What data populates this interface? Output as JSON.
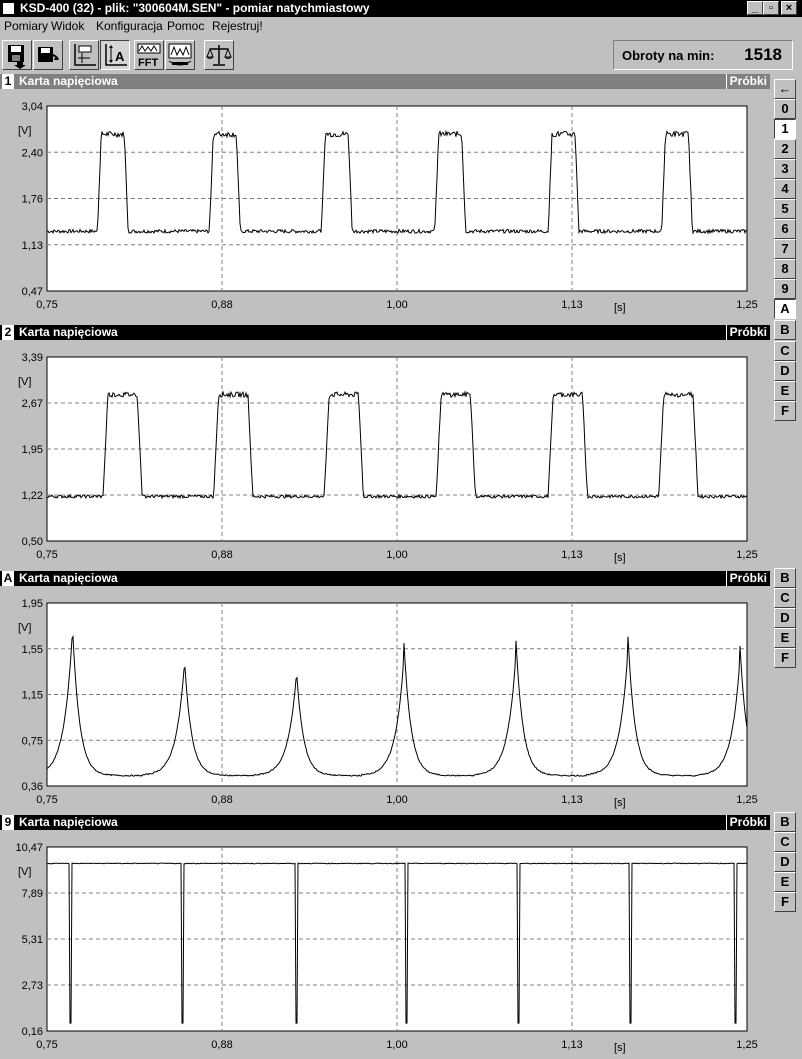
{
  "window": {
    "title": "KSD-400 (32) - plik: \"300604M.SEN\" - pomiar natychmiastowy",
    "controls": [
      "_",
      "▫",
      "×"
    ]
  },
  "menu": [
    "Pomiary",
    "Widok",
    "Konfiguracja",
    "Pomoc",
    "Rejestruj!"
  ],
  "toolbar": {
    "buttons": [
      "save-icon",
      "open-icon",
      "cursor-icon",
      "amplitude-icon",
      "fft-icon",
      "analyzer-icon",
      "scale-icon"
    ],
    "fft_label": "FFT"
  },
  "rpm": {
    "label": "Obroty na min:",
    "value": "1518"
  },
  "side_tabs_top": [
    "←",
    "0",
    "1",
    "2",
    "3",
    "4",
    "5",
    "6",
    "7",
    "8",
    "9",
    "A",
    "B",
    "C",
    "D",
    "E",
    "F"
  ],
  "side_tabs_small": [
    "B",
    "C",
    "D",
    "E",
    "F"
  ],
  "panels": [
    {
      "id": "1",
      "title": "Karta napięciowa",
      "samples": "Próbki",
      "y_ticks": [
        "3,04",
        "2,40",
        "1,76",
        "1,13",
        "0,47"
      ],
      "unit": "[V]",
      "x_ticks": [
        "0,75",
        "0,88",
        "1,00",
        "1,13",
        "1,25"
      ],
      "x_unit": "[s]"
    },
    {
      "id": "2",
      "title": "Karta napięciowa",
      "samples": "Próbki",
      "y_ticks": [
        "3,39",
        "2,67",
        "1,95",
        "1,22",
        "0,50"
      ],
      "unit": "[V]",
      "x_ticks": [
        "0,75",
        "0,88",
        "1,00",
        "1,13",
        "1,25"
      ],
      "x_unit": "[s]"
    },
    {
      "id": "A",
      "title": "Karta napięciowa",
      "samples": "Próbki",
      "y_ticks": [
        "1,95",
        "1,55",
        "1,15",
        "0,75",
        "0,36"
      ],
      "unit": "[V]",
      "x_ticks": [
        "0,75",
        "0,88",
        "1,00",
        "1,13",
        "1,25"
      ],
      "x_unit": "[s]"
    },
    {
      "id": "9",
      "title": "Karta napięciowa",
      "samples": "Próbki",
      "y_ticks": [
        "10,47",
        "7,89",
        "5,31",
        "2,73",
        "0,16"
      ],
      "unit": "[V]",
      "x_ticks": [
        "0,75",
        "0,88",
        "1,00",
        "1,13",
        "1,25"
      ],
      "x_unit": "[s]"
    }
  ],
  "chart_data": [
    {
      "type": "line",
      "panel": "1",
      "shape": "pulse",
      "ylim": [
        0.47,
        3.04
      ],
      "xlim": [
        0.75,
        1.25
      ],
      "baseline": 1.3,
      "peak": 2.65,
      "peaks_x": [
        0.797,
        0.877,
        0.957,
        1.038,
        1.119,
        1.2
      ],
      "pulse_width": 0.011,
      "color": "#000000"
    },
    {
      "type": "line",
      "panel": "2",
      "shape": "pulse",
      "ylim": [
        0.5,
        3.39
      ],
      "xlim": [
        0.75,
        1.25
      ],
      "baseline": 1.2,
      "peak": 2.8,
      "peaks_x": [
        0.804,
        0.883,
        0.962,
        1.042,
        1.122,
        1.201
      ],
      "pulse_width": 0.014,
      "color": "#000000"
    },
    {
      "type": "line",
      "panel": "A",
      "shape": "spike_decay",
      "ylim": [
        0.36,
        1.95
      ],
      "xlim": [
        0.75,
        1.25
      ],
      "baseline": 0.45,
      "peaks_x": [
        0.768,
        0.848,
        0.928,
        1.005,
        1.085,
        1.165,
        1.245
      ],
      "peaks_y": [
        1.8,
        1.5,
        1.4,
        1.6,
        1.62,
        1.66,
        1.58
      ],
      "color": "#000000"
    },
    {
      "type": "line",
      "panel": "9",
      "shape": "negative_spike",
      "ylim": [
        0.16,
        10.47
      ],
      "xlim": [
        0.75,
        1.25
      ],
      "baseline": 9.55,
      "trough": 0.6,
      "peaks_x": [
        0.767,
        0.847,
        0.928,
        1.007,
        1.087,
        1.167,
        1.242
      ],
      "color": "#000000"
    }
  ]
}
